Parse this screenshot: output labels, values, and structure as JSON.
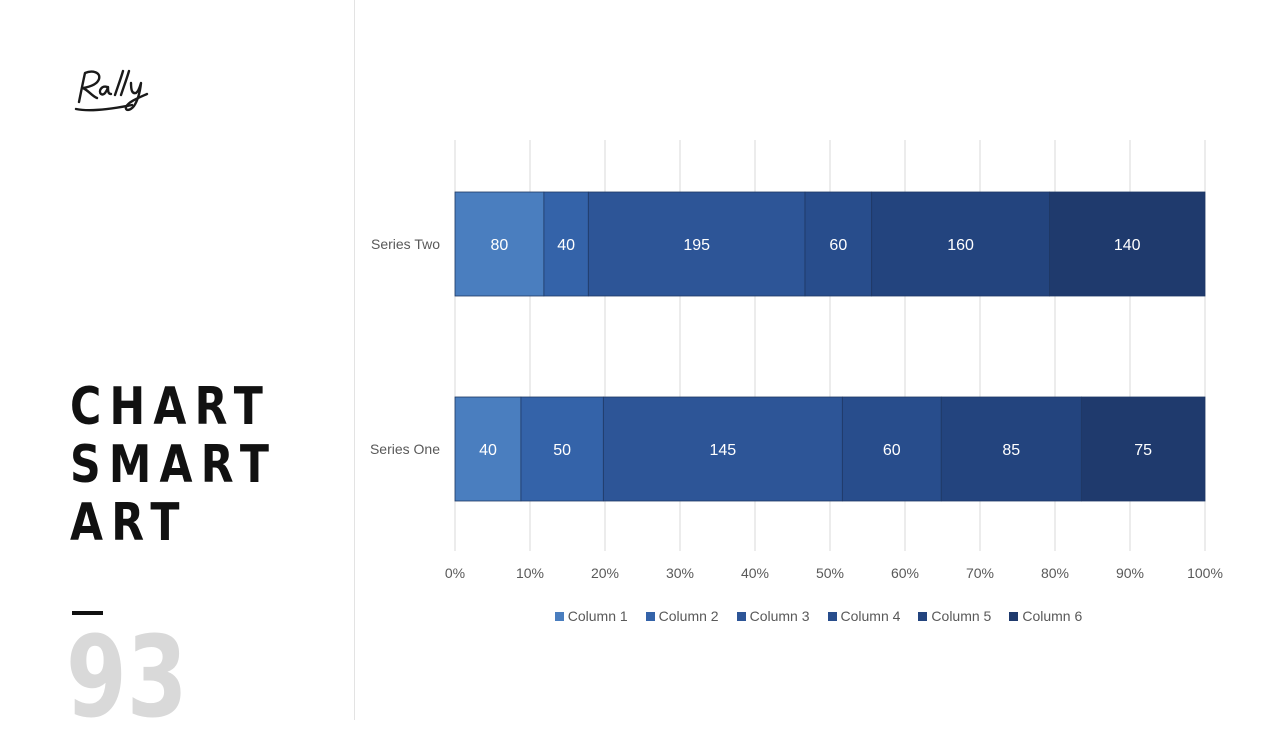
{
  "slide": {
    "logo_text": "Rally",
    "title_lines": [
      "CHART",
      "SMART",
      "ART"
    ],
    "page_number": "93"
  },
  "chart_data": {
    "type": "bar",
    "orientation": "horizontal",
    "stacked": "percent",
    "categories": [
      "Series Two",
      "Series One"
    ],
    "series": [
      {
        "name": "Column 1",
        "values": [
          80,
          40
        ],
        "color": "#4a7ebf"
      },
      {
        "name": "Column 2",
        "values": [
          40,
          50
        ],
        "color": "#3463a9"
      },
      {
        "name": "Column 3",
        "values": [
          195,
          145
        ],
        "color": "#2d5597"
      },
      {
        "name": "Column 4",
        "values": [
          60,
          60
        ],
        "color": "#284d8c"
      },
      {
        "name": "Column 5",
        "values": [
          160,
          85
        ],
        "color": "#23447e"
      },
      {
        "name": "Column 6",
        "values": [
          140,
          75
        ],
        "color": "#1f3a6d"
      }
    ],
    "xticks": [
      "0%",
      "10%",
      "20%",
      "30%",
      "40%",
      "50%",
      "60%",
      "70%",
      "80%",
      "90%",
      "100%"
    ],
    "xlim": [
      0,
      100
    ],
    "grid": "vertical",
    "data_labels": true,
    "legend": "bottom"
  }
}
